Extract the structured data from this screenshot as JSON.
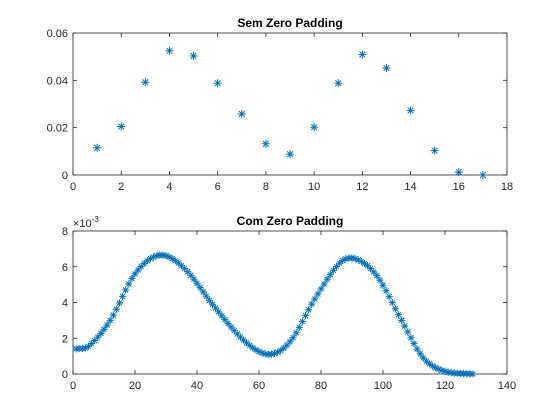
{
  "chart_data": [
    {
      "type": "scatter",
      "title": "Sem Zero Padding",
      "xlabel": "",
      "ylabel": "",
      "xlim": [
        0,
        18
      ],
      "ylim": [
        0,
        0.06
      ],
      "xticks": [
        "0",
        "2",
        "4",
        "6",
        "8",
        "10",
        "12",
        "14",
        "16",
        "18"
      ],
      "yticks": [
        "0",
        "0.02",
        "0.04",
        "0.06"
      ],
      "grid": false,
      "marker": "asterisk",
      "color": "#0072BD",
      "x": [
        1,
        2,
        3,
        4,
        5,
        6,
        7,
        8,
        9,
        10,
        11,
        12,
        13,
        14,
        15,
        16,
        17
      ],
      "y": [
        0.0115,
        0.0205,
        0.0392,
        0.0525,
        0.0503,
        0.0388,
        0.0258,
        0.0132,
        0.0088,
        0.0202,
        0.0388,
        0.0509,
        0.0452,
        0.0273,
        0.0103,
        0.0012,
        0.0
      ]
    },
    {
      "type": "scatter",
      "title": "Com Zero Padding",
      "xlabel": "",
      "ylabel": "",
      "xlim": [
        0,
        140
      ],
      "ylim": [
        0,
        8
      ],
      "y_exponent_label": "×10",
      "y_exponent_power": "-3",
      "xticks": [
        "0",
        "20",
        "40",
        "60",
        "80",
        "100",
        "120",
        "140"
      ],
      "yticks": [
        "0",
        "2",
        "4",
        "6",
        "8"
      ],
      "grid": false,
      "marker": "asterisk",
      "color": "#0072BD",
      "x_range": [
        1,
        129
      ],
      "key_points": [
        {
          "x": 1,
          "y": 1.4
        },
        {
          "x": 5,
          "y": 1.55
        },
        {
          "x": 12,
          "y": 3.0
        },
        {
          "x": 20,
          "y": 5.6
        },
        {
          "x": 28,
          "y": 6.65
        },
        {
          "x": 36,
          "y": 5.9
        },
        {
          "x": 45,
          "y": 3.9
        },
        {
          "x": 55,
          "y": 1.9
        },
        {
          "x": 63,
          "y": 1.1
        },
        {
          "x": 70,
          "y": 1.8
        },
        {
          "x": 78,
          "y": 4.2
        },
        {
          "x": 86,
          "y": 6.2
        },
        {
          "x": 91,
          "y": 6.45
        },
        {
          "x": 98,
          "y": 5.5
        },
        {
          "x": 106,
          "y": 3.0
        },
        {
          "x": 113,
          "y": 0.9
        },
        {
          "x": 120,
          "y": 0.15
        },
        {
          "x": 129,
          "y": 0.0
        }
      ]
    }
  ]
}
